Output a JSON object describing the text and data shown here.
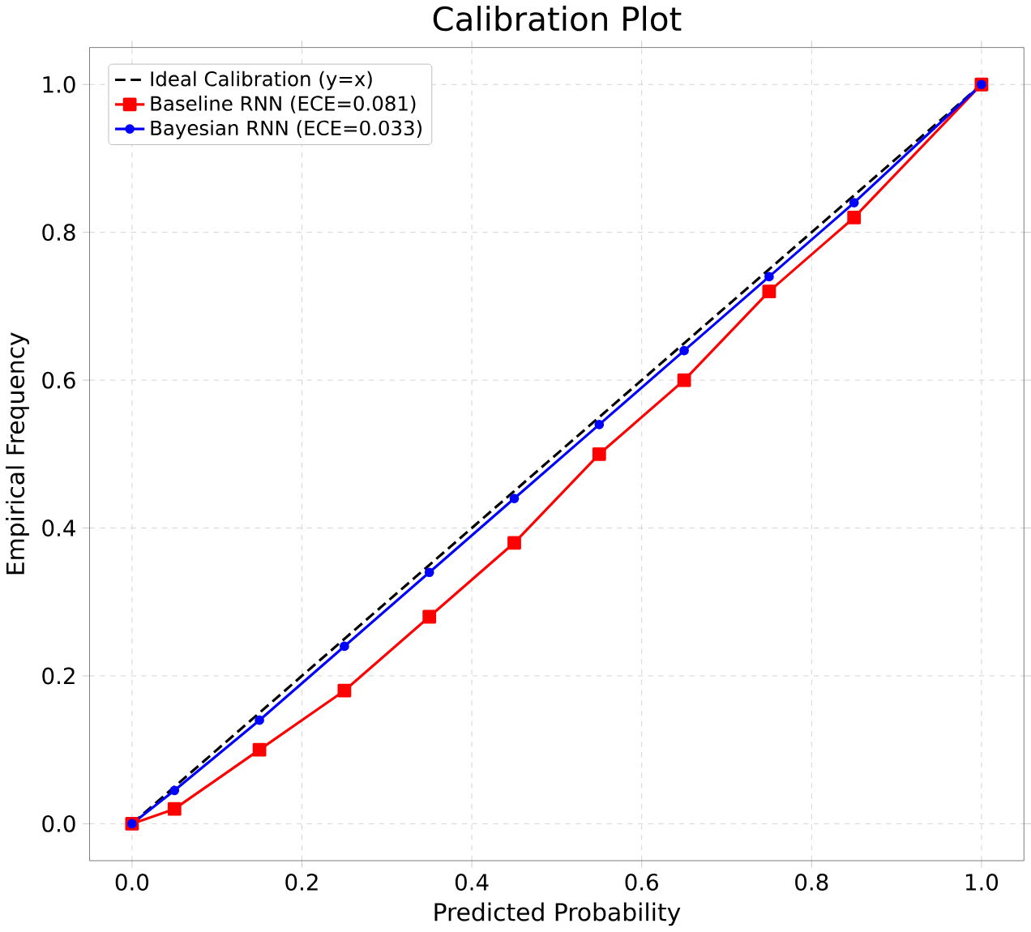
{
  "chart_data": {
    "type": "line",
    "title": "Calibration Plot",
    "xlabel": "Predicted Probability",
    "ylabel": "Empirical Frequency",
    "xlim": [
      -0.05,
      1.05
    ],
    "ylim": [
      -0.05,
      1.05
    ],
    "xticks": [
      {
        "value": 0,
        "label": "0.0"
      },
      {
        "value": 0.2,
        "label": "0.2"
      },
      {
        "value": 0.4,
        "label": "0.4"
      },
      {
        "value": 0.6,
        "label": "0.6"
      },
      {
        "value": 0.8,
        "label": "0.8"
      },
      {
        "value": 1,
        "label": "1.0"
      }
    ],
    "yticks": [
      {
        "value": 0,
        "label": "0.0"
      },
      {
        "value": 0.2,
        "label": "0.2"
      },
      {
        "value": 0.4,
        "label": "0.4"
      },
      {
        "value": 0.6,
        "label": "0.6"
      },
      {
        "value": 0.8,
        "label": "0.8"
      },
      {
        "value": 1,
        "label": "1.0"
      }
    ],
    "grid": true,
    "legend": "top left",
    "series": [
      {
        "name": "Ideal Calibration (y=x)",
        "color": "#000000",
        "line_style": "dashed",
        "marker": "none",
        "x": [
          0,
          1
        ],
        "values": [
          0,
          1
        ]
      },
      {
        "name": "Baseline RNN (ECE=0.081)",
        "color": "#ff0000",
        "line_style": "solid",
        "marker": "square",
        "x": [
          0,
          0.05,
          0.15,
          0.25,
          0.35,
          0.45,
          0.55,
          0.65,
          0.75,
          0.85,
          1.0
        ],
        "values": [
          0,
          0.02,
          0.1,
          0.18,
          0.28,
          0.38,
          0.5,
          0.6,
          0.72,
          0.82,
          1.0
        ]
      },
      {
        "name": "Bayesian RNN (ECE=0.033)",
        "color": "#0000ff",
        "line_style": "solid",
        "marker": "circle",
        "x": [
          0,
          0.05,
          0.15,
          0.25,
          0.35,
          0.45,
          0.55,
          0.65,
          0.75,
          0.85,
          1.0
        ],
        "values": [
          0,
          0.045,
          0.14,
          0.24,
          0.34,
          0.44,
          0.54,
          0.64,
          0.74,
          0.84,
          1.0
        ]
      }
    ]
  }
}
